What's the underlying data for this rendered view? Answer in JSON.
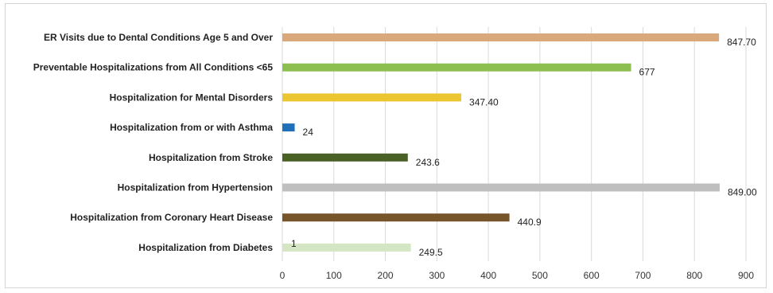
{
  "chart_data": {
    "type": "bar",
    "orientation": "horizontal",
    "categories": [
      "ER Visits due to Dental Conditions Age 5 and Over",
      "Preventable Hospitalizations from All Conditions <65",
      "Hospitalization for Mental Disorders",
      "Hospitalization from or with Asthma",
      "Hospitalization from Stroke",
      "Hospitalization from Hypertension",
      "Hospitalization from Coronary Heart Disease",
      "Hospitalization from Diabetes"
    ],
    "values": [
      847.7,
      677,
      347.4,
      24,
      243.6,
      849.0,
      440.9,
      249.5
    ],
    "value_labels": [
      "847.70",
      "677",
      "347.40",
      "24",
      "243.6",
      "849.00",
      "440.9",
      "249.5"
    ],
    "colors": [
      "#d9a97c",
      "#8dbf50",
      "#ebc631",
      "#1f6fba",
      "#4a6126",
      "#bfbfbf",
      "#77542a",
      "#d5e6c4"
    ],
    "extra_annotation": "1",
    "xlim": [
      0,
      900
    ],
    "xticks": [
      "0",
      "100",
      "200",
      "300",
      "400",
      "500",
      "600",
      "700",
      "800",
      "900"
    ],
    "grid": "vertical",
    "legend": "none"
  }
}
